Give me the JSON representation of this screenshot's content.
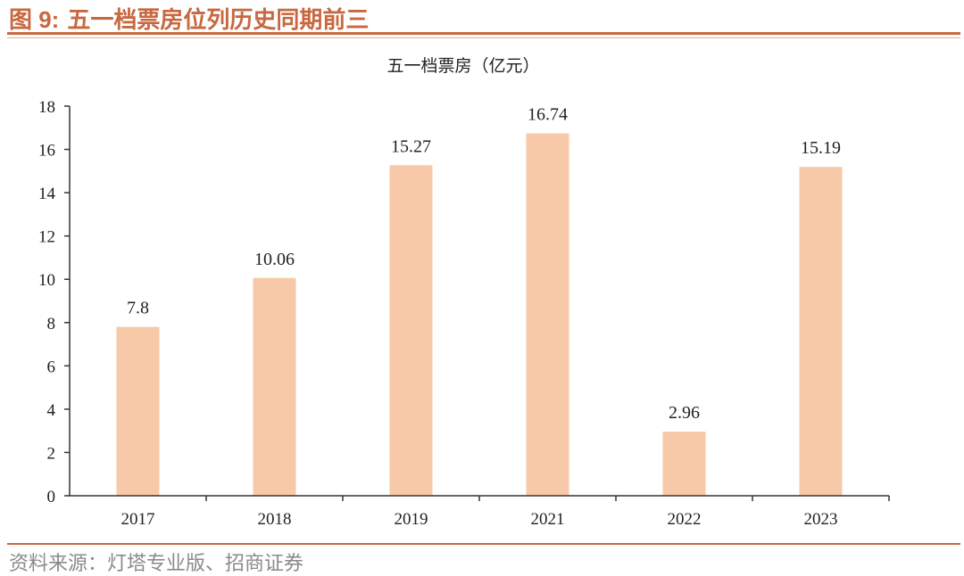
{
  "figure": {
    "label": "图 9:",
    "title": "五一档票房位列历史同期前三"
  },
  "source": "资料来源：灯塔专业版、招商证券",
  "chart_data": {
    "type": "bar",
    "title": "五一档票房（亿元）",
    "categories": [
      "2017",
      "2018",
      "2019",
      "2021",
      "2022",
      "2023"
    ],
    "values": [
      7.8,
      10.06,
      15.27,
      16.74,
      2.96,
      15.19
    ],
    "data_labels": [
      "7.8",
      "10.06",
      "15.27",
      "16.74",
      "2.96",
      "15.19"
    ],
    "yticks": [
      0,
      2,
      4,
      6,
      8,
      10,
      12,
      14,
      16,
      18
    ],
    "ylim": [
      0,
      18
    ],
    "grid": false,
    "legend": "none",
    "bar_color": "#f7c9a8",
    "axis_color": "#333333"
  },
  "colors": {
    "accent": "#c86840",
    "source_text": "#8a8a8a"
  }
}
